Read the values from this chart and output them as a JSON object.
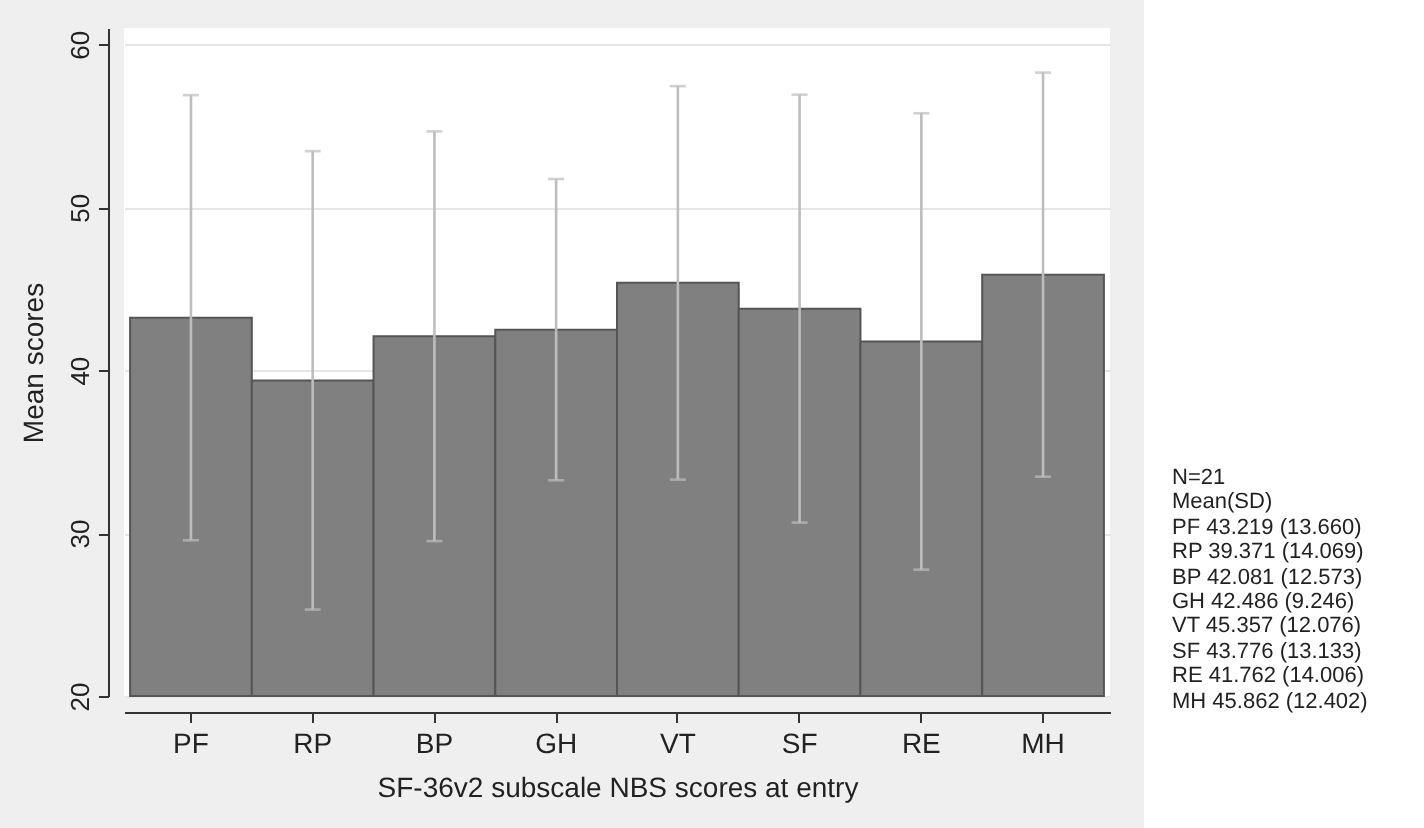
{
  "chart_data": {
    "type": "bar",
    "xlabel": "SF-36v2 subscale NBS scores at entry",
    "ylabel": "Mean scores",
    "categories": [
      "PF",
      "RP",
      "BP",
      "GH",
      "VT",
      "SF",
      "RE",
      "MH"
    ],
    "values": [
      43.219,
      39.371,
      42.081,
      42.486,
      45.357,
      43.776,
      41.762,
      45.862
    ],
    "errors": [
      13.66,
      14.069,
      12.573,
      9.246,
      12.076,
      13.133,
      14.006,
      12.402
    ],
    "color": "#808080",
    "ylim": [
      20,
      61
    ],
    "yticks": [
      20,
      30,
      40,
      50,
      60
    ],
    "grid": "y",
    "annotations": [
      "N=21",
      "Mean(SD)",
      "PF 43.219 (13.660)",
      "RP 39.371 (14.069)",
      "BP 42.081 (12.573)",
      "GH 42.486 (9.246)",
      "VT 45.357 (12.076)",
      "SF 43.776 (13.133)",
      "RE 41.762 (14.006)",
      "MH 45.862 (12.402)"
    ]
  }
}
